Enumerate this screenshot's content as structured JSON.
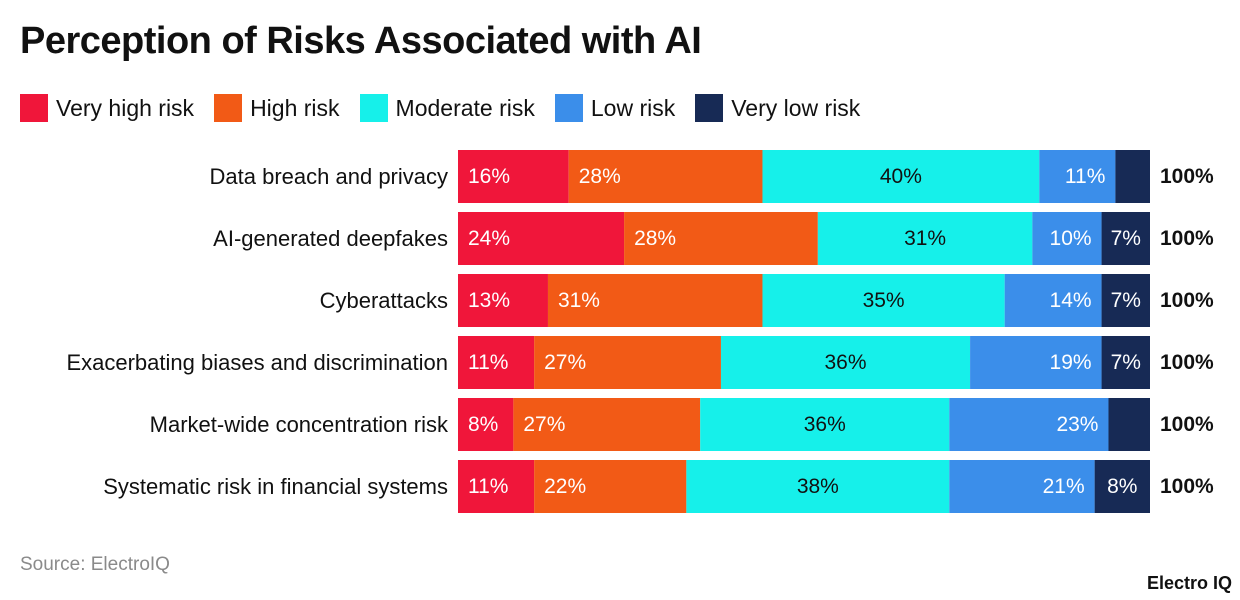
{
  "title": "Perception of Risks Associated with AI",
  "source": "Source: ElectroIQ",
  "brand": "Electro IQ",
  "legend": [
    {
      "label": "Very high risk",
      "color": "#f0163a"
    },
    {
      "label": "High risk",
      "color": "#f25a16"
    },
    {
      "label": "Moderate risk",
      "color": "#16f0ea"
    },
    {
      "label": "Low risk",
      "color": "#3b8eea"
    },
    {
      "label": "Very low risk",
      "color": "#172a55"
    }
  ],
  "chart_data": {
    "type": "bar",
    "orientation": "horizontal",
    "stacked": true,
    "title": "Perception of Risks Associated with AI",
    "categories": [
      "Data breach and privacy",
      "AI-generated deepfakes",
      "Cyberattacks",
      "Exacerbating biases and discrimination",
      "Market-wide concentration risk",
      "Systematic risk in financial systems"
    ],
    "series": [
      {
        "name": "Very high risk",
        "color": "#f0163a",
        "values": [
          16,
          24,
          13,
          11,
          8,
          11
        ],
        "labels": [
          "16%",
          "24%",
          "13%",
          "11%",
          "8%",
          "11%"
        ]
      },
      {
        "name": "High risk",
        "color": "#f25a16",
        "values": [
          28,
          28,
          31,
          27,
          27,
          22
        ],
        "labels": [
          "28%",
          "28%",
          "31%",
          "27%",
          "27%",
          "22%"
        ]
      },
      {
        "name": "Moderate risk",
        "color": "#16f0ea",
        "values": [
          40,
          31,
          35,
          36,
          36,
          38
        ],
        "labels": [
          "40%",
          "31%",
          "35%",
          "36%",
          "36%",
          "38%"
        ]
      },
      {
        "name": "Low risk",
        "color": "#3b8eea",
        "values": [
          11,
          10,
          14,
          19,
          23,
          21
        ],
        "labels": [
          "11%",
          "10%",
          "14%",
          "19%",
          "23%",
          "21%"
        ]
      },
      {
        "name": "Very low risk",
        "color": "#172a55",
        "values": [
          5,
          7,
          7,
          7,
          6,
          8
        ],
        "labels": [
          "",
          "7%",
          "7%",
          "7%",
          "",
          "8%"
        ]
      }
    ],
    "totals": [
      "100%",
      "100%",
      "100%",
      "100%",
      "100%",
      "100%"
    ],
    "xlim": [
      0,
      100
    ],
    "grid": false,
    "legend_position": "top-left"
  }
}
